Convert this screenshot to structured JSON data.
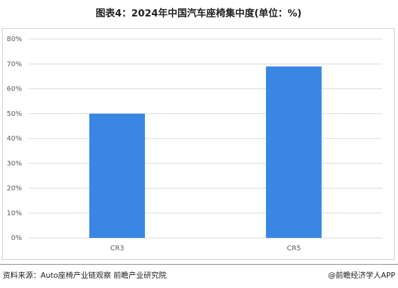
{
  "chart_data": {
    "type": "bar",
    "title": "图表4：2024年中国汽车座椅集中度(单位：%)",
    "categories": [
      "CR3",
      "CR5"
    ],
    "values": [
      50,
      69
    ],
    "color": "#3a87e3",
    "ylim": [
      0,
      80
    ],
    "yticks": [
      {
        "value": 0,
        "label": "0%"
      },
      {
        "value": 10,
        "label": "10%"
      },
      {
        "value": 20,
        "label": "20%"
      },
      {
        "value": 30,
        "label": "30%"
      },
      {
        "value": 40,
        "label": "40%"
      },
      {
        "value": 50,
        "label": "50%"
      },
      {
        "value": 60,
        "label": "60%"
      },
      {
        "value": 70,
        "label": "70%"
      },
      {
        "value": 80,
        "label": "80%"
      }
    ],
    "grid": true,
    "source": "资料来源：Auto座椅产业链观察 前瞻产业研究院",
    "credit": "@前瞻经济学人APP"
  }
}
